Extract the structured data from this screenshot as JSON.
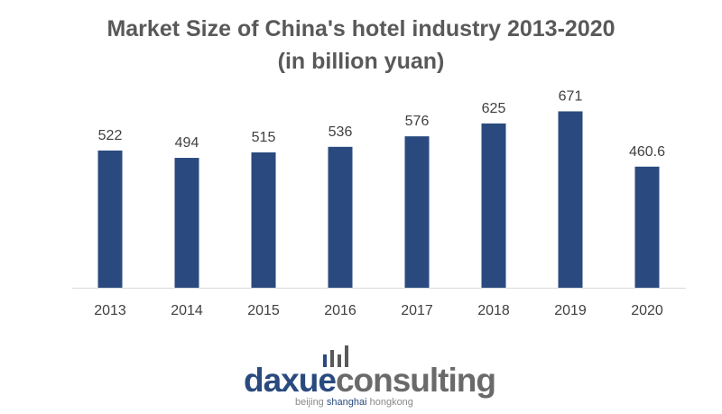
{
  "chart_data": {
    "type": "bar",
    "title": "Market Size of China's hotel industry 2013-2020",
    "subtitle": "(in billion yuan)",
    "categories": [
      "2013",
      "2014",
      "2015",
      "2016",
      "2017",
      "2018",
      "2019",
      "2020"
    ],
    "values": [
      522,
      494,
      515,
      536,
      576,
      625,
      671,
      460.6
    ],
    "data_labels": [
      "522",
      "494",
      "515",
      "536",
      "576",
      "625",
      "671",
      "460.6"
    ],
    "xlabel": "",
    "ylabel": "",
    "ylim": [
      0,
      700
    ],
    "grid": false,
    "bar_color": "#2a4a7f"
  },
  "logo": {
    "text_dark": "daxue",
    "text_light": "consulting",
    "tagline_1": "beijing",
    "tagline_2": "shanghai",
    "tagline_3": "hongkong",
    "dark_color": "#2a4a7f",
    "light_color": "#595959"
  }
}
